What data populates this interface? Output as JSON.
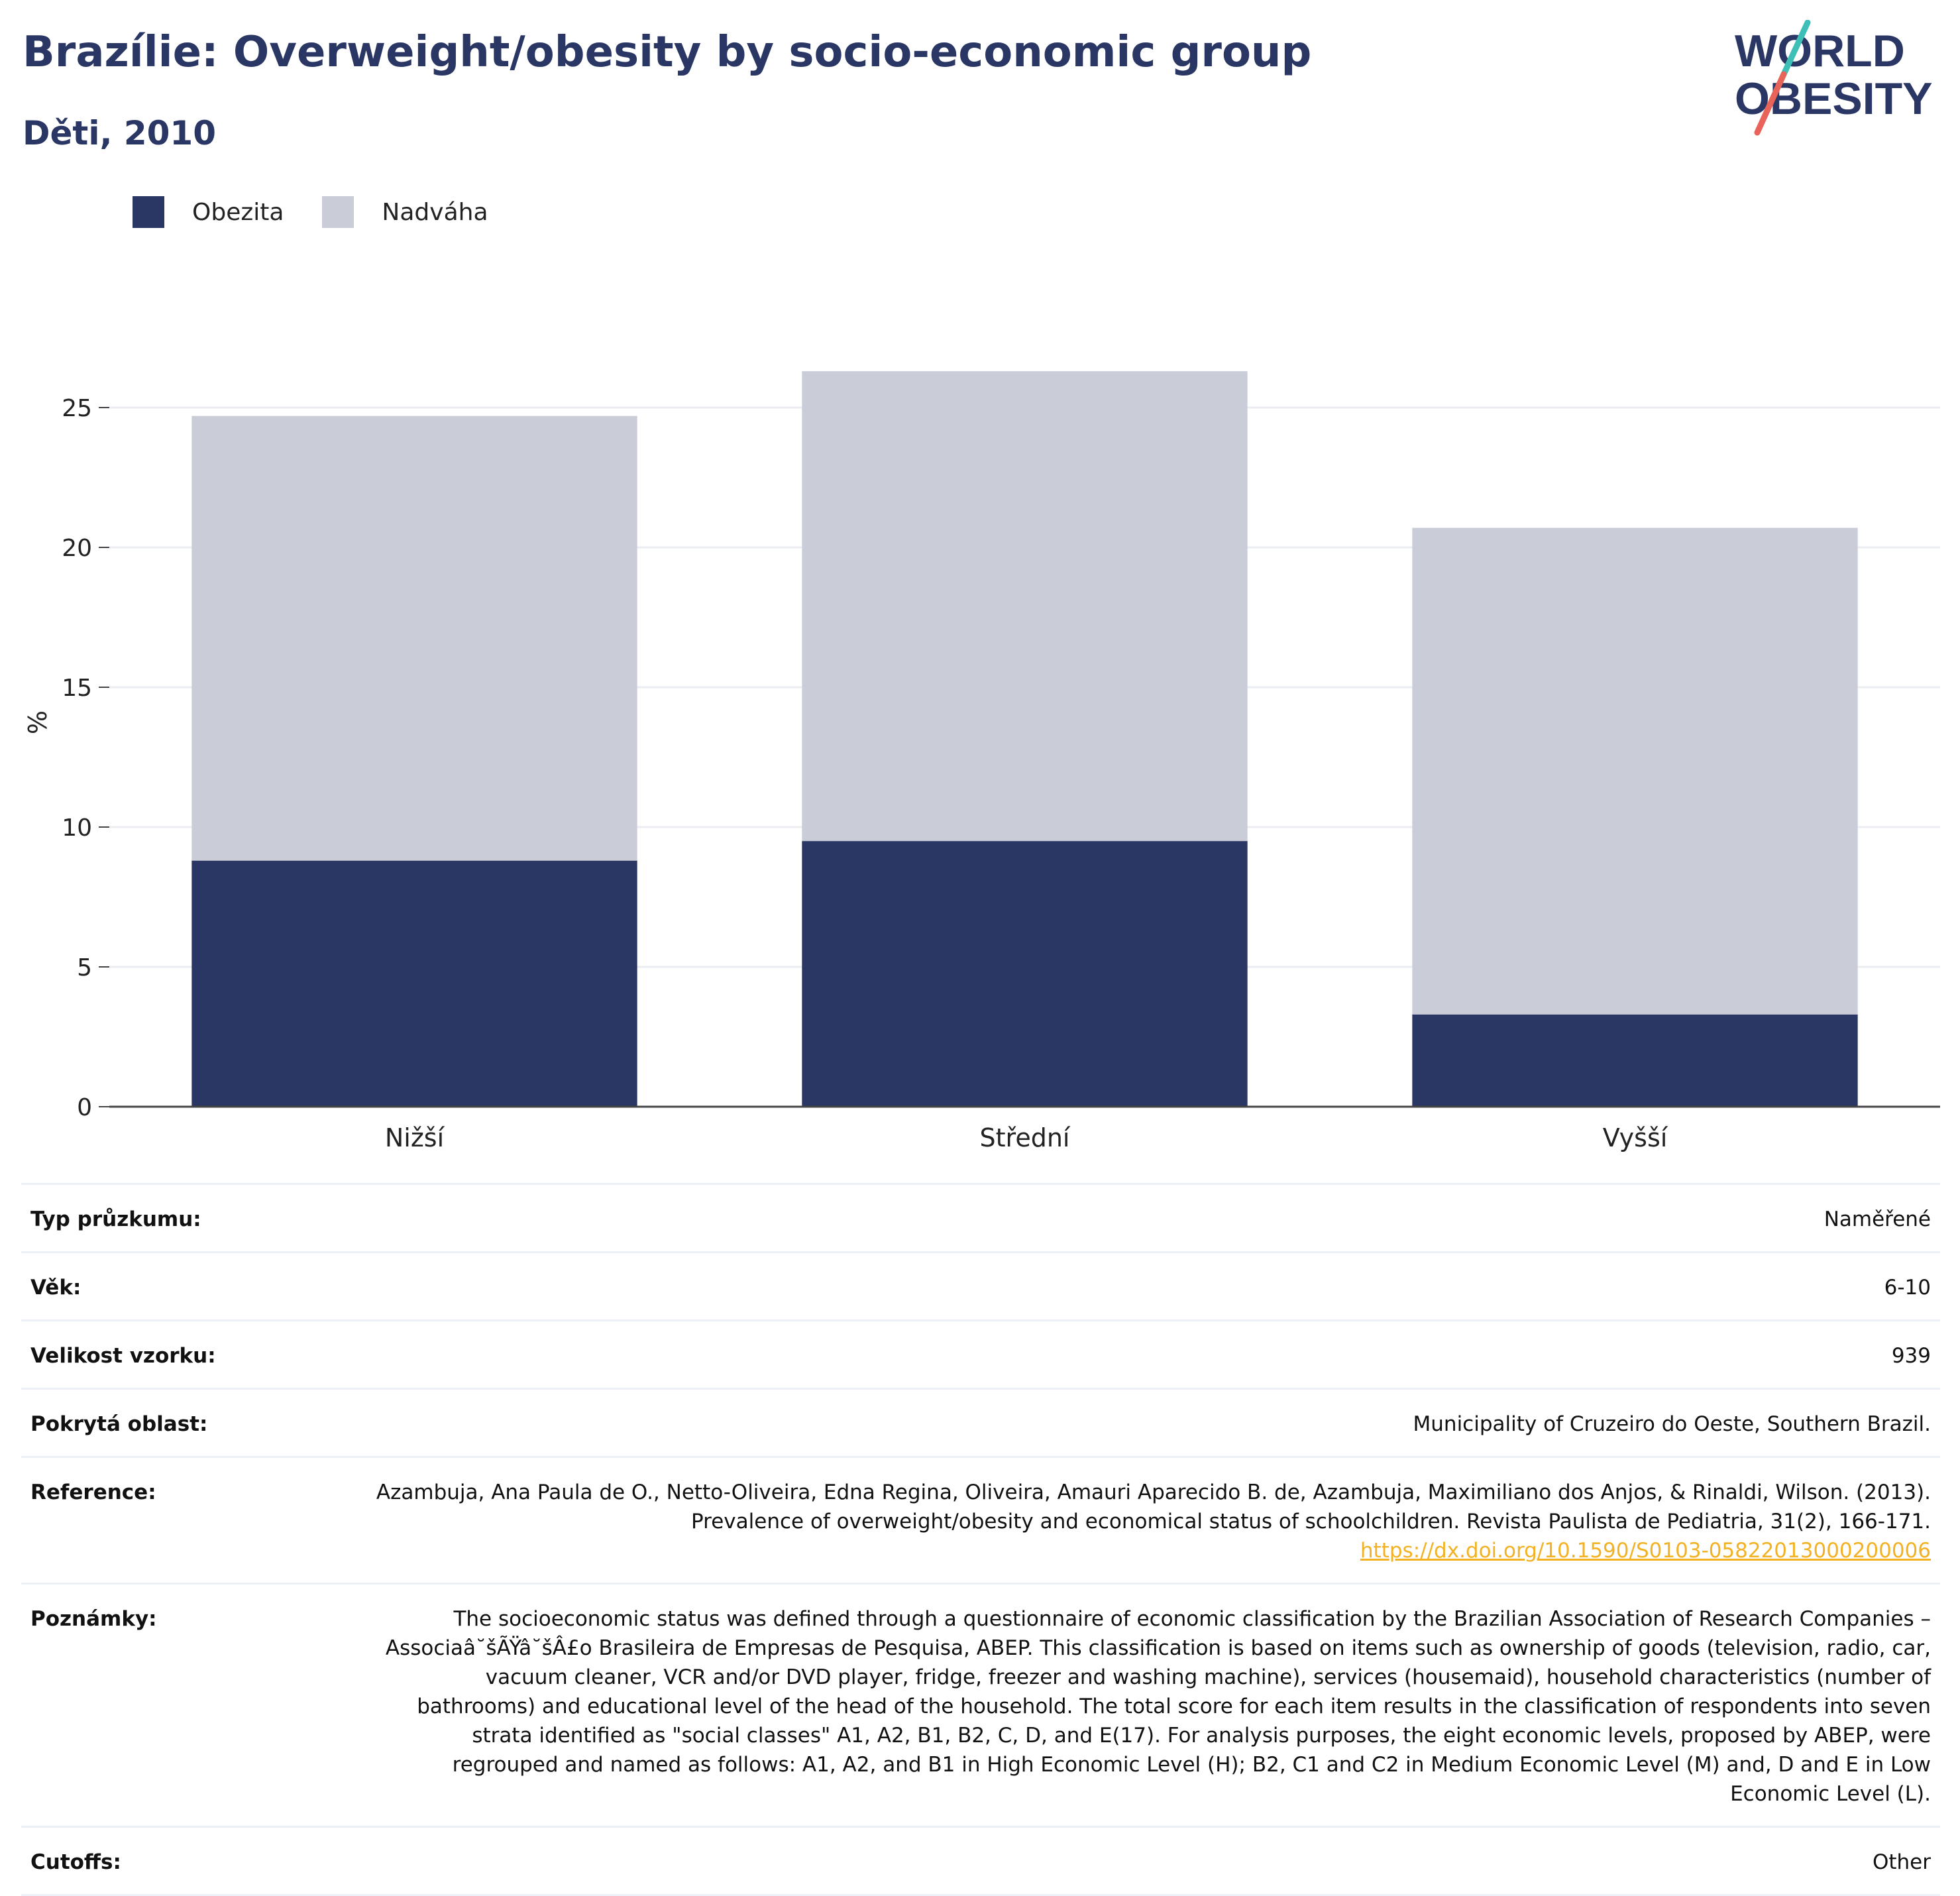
{
  "header": {
    "title": "Brazílie: Overweight/obesity by socio-economic group",
    "subtitle": "Děti, 2010"
  },
  "logo": {
    "line1": "WORLD",
    "line2": "OBESITY",
    "colors": {
      "text": "#2a3664",
      "slash_teal": "#3dbfb8",
      "slash_coral": "#e8645a"
    }
  },
  "chart_data": {
    "type": "bar",
    "stacked": true,
    "categories": [
      "Nižší",
      "Střední",
      "Vyšší"
    ],
    "series": [
      {
        "name": "Obezita",
        "color": "#2a3664",
        "values": [
          8.8,
          9.5,
          3.3
        ]
      },
      {
        "name": "Nadváha",
        "color": "#cacdd8",
        "values": [
          15.9,
          16.8,
          17.4
        ]
      }
    ],
    "ylabel": "%",
    "xlabel": "",
    "ylim": [
      0,
      27
    ],
    "yticks": [
      0,
      5,
      10,
      15,
      20,
      25
    ],
    "grid": true,
    "legend_position": "top-left"
  },
  "info": {
    "rows": [
      {
        "label": "Typ průzkumu:",
        "value": "Naměřené"
      },
      {
        "label": "Věk:",
        "value": "6-10"
      },
      {
        "label": "Velikost vzorku:",
        "value": "939"
      },
      {
        "label": "Pokrytá oblast:",
        "value": "Municipality of Cruzeiro do Oeste, Southern Brazil."
      },
      {
        "label": "Reference:",
        "value": "Azambuja, Ana Paula de O., Netto-Oliveira, Edna Regina, Oliveira, Amauri Aparecido B. de, Azambuja, Maximiliano dos Anjos, & Rinaldi, Wilson. (2013). Prevalence of overweight/obesity and economical status of schoolchildren. Revista Paulista de Pediatria, 31(2), 166-171.",
        "link": "https://dx.doi.org/10.1590/S0103-05822013000200006"
      },
      {
        "label": "Poznámky:",
        "value": "The socioeconomic status was defined through a questionnaire of economic classification by the Brazilian Association of Research Companies – Associaâ˘šÃŸâ˘šÂ£o Brasileira de Empresas de Pesquisa, ABEP. This classification is based on items such as ownership of goods (television, radio, car, vacuum cleaner, VCR and/or DVD player, fridge, freezer and washing machine), services (housemaid), household characteristics (number of bathrooms) and educational level of the head of the household. The total score for each item results in the classification of respondents into seven strata identified as \"social classes\" A1, A2, B1, B2, C, D, and E(17). For analysis purposes, the eight economic levels, proposed by ABEP, were regrouped and named as follows: A1, A2, and B1 in High Economic Level (H); B2, C1 and C2 in Medium Economic Level (M) and, D and E in Low Economic Level (L)."
      },
      {
        "label": "Cutoffs:",
        "value": "Other"
      }
    ]
  }
}
